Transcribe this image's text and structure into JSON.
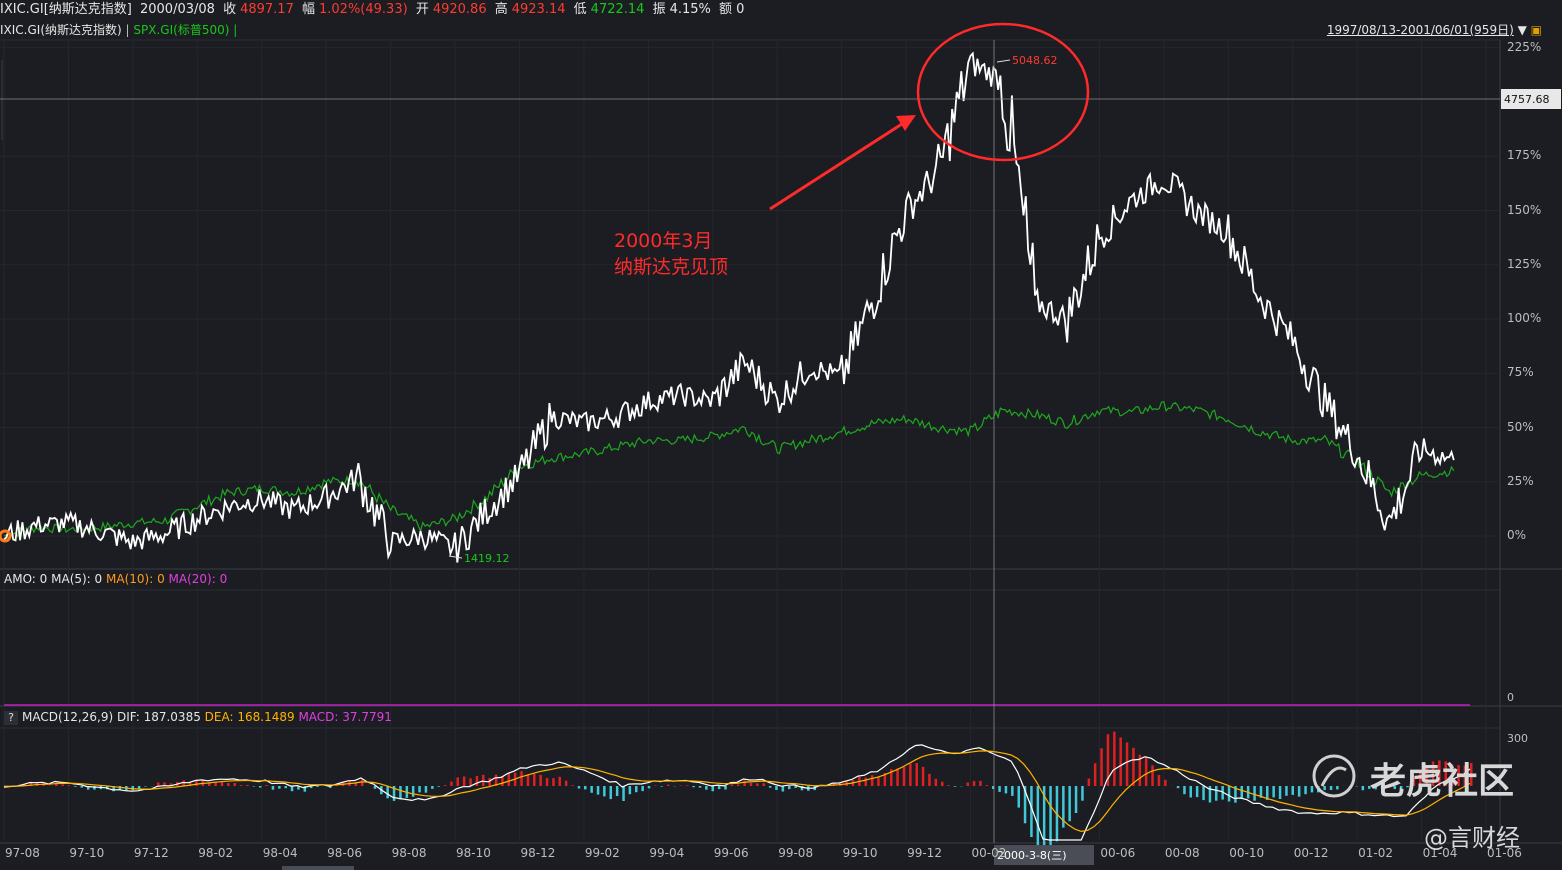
{
  "header": {
    "symbol": "IXIC.GI[纳斯达克指数]",
    "date": "2000/03/08",
    "close_label": "收",
    "close_value": "4897.17",
    "change_label": "幅",
    "change_value": "1.02%(49.33)",
    "open_label": "开",
    "open_value": "4920.86",
    "high_label": "高",
    "high_value": "4923.14",
    "low_label": "低",
    "low_value": "4722.14",
    "amplitude_label": "振",
    "amplitude_value": "4.15%",
    "amount_label": "额",
    "amount_value": "0"
  },
  "legend": {
    "main": "IXIC.GI(纳斯达克指数)",
    "sep1": "|",
    "compare": "SPX.GI(标普500)",
    "sep2": "|",
    "range": "1997/08/13-2001/06/01(959日)"
  },
  "annotation": {
    "line1": "2000年3月",
    "line2": "纳斯达克见顶"
  },
  "markers": {
    "high_value": "5048.62",
    "low_value": "1419.12",
    "crosshair_price": "4757.68",
    "crosshair_date": "2000-3-8(三)"
  },
  "amo": {
    "label": "AMO: 0",
    "ma5": "MA(5): 0",
    "ma10": "MA(10): 0",
    "ma20": "MA(20): 0",
    "zero": "0"
  },
  "macd": {
    "help": "?",
    "label": "MACD(12,26,9)",
    "dif": "DIF: 187.0385",
    "dea": "DEA: 168.1489",
    "macd": "MACD: 37.7791",
    "top": "300"
  },
  "watermark": {
    "brand": "老虎社区",
    "author": "@言财经"
  },
  "colors": {
    "nasdaq": "#ffffff",
    "spx": "#1fa81f",
    "annotation": "#ff2a2a",
    "macd_up": "#e02020",
    "macd_down": "#3fc8d8",
    "dif": "#ffffff",
    "dea": "#ffb300"
  },
  "chart_data": {
    "type": "line",
    "x_ticks": [
      "97-08",
      "97-10",
      "97-12",
      "98-02",
      "98-04",
      "98-06",
      "98-08",
      "98-10",
      "98-12",
      "99-02",
      "99-04",
      "99-06",
      "99-08",
      "99-10",
      "99-12",
      "00-02",
      "00-06",
      "00-08",
      "00-10",
      "00-12",
      "01-02",
      "01-04",
      "01-06"
    ],
    "y_ticks": [
      "0%",
      "25%",
      "50%",
      "75%",
      "100%",
      "125%",
      "150%",
      "175%",
      "225%"
    ],
    "ylim": [
      -10,
      225
    ],
    "series": [
      {
        "name": "IXIC.GI(纳斯达克指数)",
        "x": [
          "1997-08",
          "1997-09",
          "1997-10",
          "1997-11",
          "1997-12",
          "1998-01",
          "1998-02",
          "1998-03",
          "1998-04",
          "1998-05",
          "1998-06",
          "1998-07",
          "1998-08",
          "1998-09",
          "1998-10",
          "1998-11",
          "1998-12",
          "1999-01",
          "1999-02",
          "1999-03",
          "1999-04",
          "1999-05",
          "1999-06",
          "1999-07",
          "1999-08",
          "1999-09",
          "1999-10",
          "1999-11",
          "1999-12",
          "2000-01",
          "2000-02",
          "2000-03",
          "2000-04",
          "2000-05",
          "2000-06",
          "2000-07",
          "2000-08",
          "2000-09",
          "2000-10",
          "2000-11",
          "2000-12",
          "2001-01",
          "2001-02",
          "2001-03",
          "2001-04",
          "2001-05"
        ],
        "values": [
          0,
          5,
          6,
          2,
          -3,
          1,
          8,
          14,
          17,
          12,
          18,
          27,
          -3,
          0,
          -6,
          12,
          28,
          55,
          52,
          55,
          62,
          65,
          62,
          80,
          62,
          78,
          73,
          110,
          150,
          168,
          218,
          210,
          108,
          100,
          138,
          155,
          165,
          150,
          140,
          110,
          90,
          62,
          38,
          6,
          40,
          35
        ]
      },
      {
        "name": "SPX.GI(标普500)",
        "x": [
          "1997-08",
          "1997-09",
          "1997-10",
          "1997-11",
          "1997-12",
          "1998-01",
          "1998-02",
          "1998-03",
          "1998-04",
          "1998-05",
          "1998-06",
          "1998-07",
          "1998-08",
          "1998-09",
          "1998-10",
          "1998-11",
          "1998-12",
          "1999-01",
          "1999-02",
          "1999-03",
          "1999-04",
          "1999-05",
          "1999-06",
          "1999-07",
          "1999-08",
          "1999-09",
          "1999-10",
          "1999-11",
          "1999-12",
          "2000-01",
          "2000-02",
          "2000-03",
          "2000-04",
          "2000-05",
          "2000-06",
          "2000-07",
          "2000-08",
          "2000-09",
          "2000-10",
          "2000-11",
          "2000-12",
          "2001-01",
          "2001-02",
          "2001-03",
          "2001-04",
          "2001-05"
        ],
        "values": [
          0,
          4,
          3,
          4,
          6,
          7,
          14,
          20,
          22,
          20,
          25,
          26,
          12,
          4,
          8,
          18,
          32,
          36,
          38,
          41,
          44,
          44,
          46,
          50,
          40,
          44,
          48,
          52,
          54,
          50,
          48,
          58,
          56,
          52,
          58,
          57,
          60,
          58,
          54,
          48,
          44,
          44,
          34,
          20,
          28,
          30
        ]
      }
    ],
    "high": 5048.62,
    "low": 1419.12
  }
}
